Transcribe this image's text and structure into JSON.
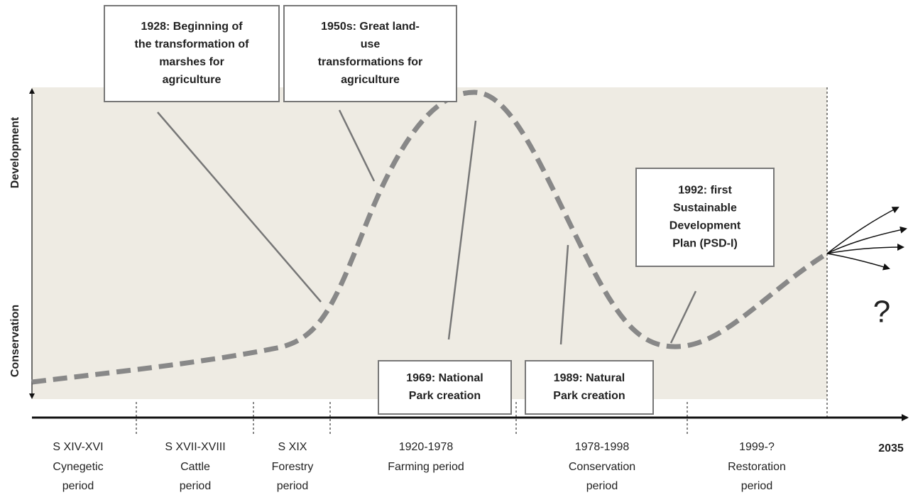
{
  "axis": {
    "top_label": "Development",
    "bottom_label": "Conservation",
    "end_year": "2035",
    "unknown": "?"
  },
  "annotations": [
    {
      "lines": [
        "1928: Beginning of",
        "the transformation of",
        "marshes for",
        "agriculture"
      ]
    },
    {
      "lines": [
        "1950s: Great land-",
        "use",
        "transformations for",
        "agriculture"
      ]
    },
    {
      "lines": [
        "1969: National",
        "Park creation"
      ]
    },
    {
      "lines": [
        "1989: Natural",
        "Park creation"
      ]
    },
    {
      "lines": [
        "1992: first",
        "Sustainable",
        "Development",
        "Plan (PSD-I)"
      ]
    }
  ],
  "periods": [
    {
      "dates": "S XIV-XVI",
      "lines": [
        "Cynegetic",
        "period"
      ]
    },
    {
      "dates": "S XVII-XVIII",
      "lines": [
        "Cattle",
        "period"
      ]
    },
    {
      "dates": "S XIX",
      "lines": [
        "Forestry",
        "period"
      ]
    },
    {
      "dates": "1920-1978",
      "lines": [
        "Farming period"
      ]
    },
    {
      "dates": "1978-1998",
      "lines": [
        "Conservation",
        "period"
      ]
    },
    {
      "dates": "1999-?",
      "lines": [
        "Restoration",
        "period"
      ]
    }
  ]
}
